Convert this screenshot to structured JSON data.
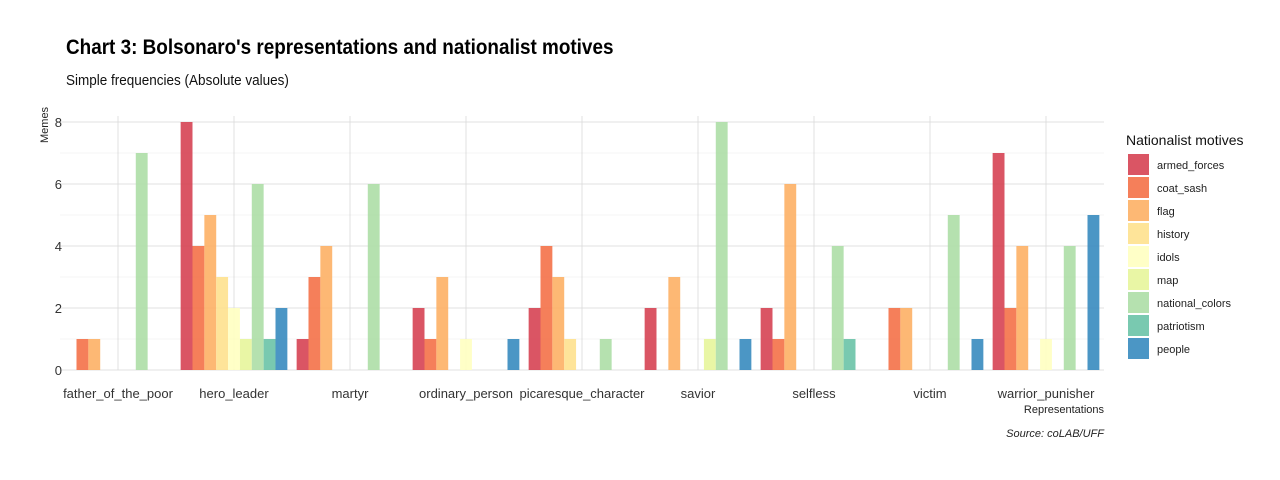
{
  "title": "Chart 3: Bolsonaro's representations and nationalist motives",
  "subtitle": "Simple frequencies (Absolute values)",
  "caption": "Source: coLAB/UFF",
  "legend_title": "Nationalist motives",
  "colors": [
    "#d53e4f",
    "#f46d43",
    "#fdae61",
    "#fee08b",
    "#ffffbf",
    "#e6f598",
    "#abdda4",
    "#66c2a5",
    "#3288bd"
  ],
  "chart_data": {
    "type": "bar",
    "title": "Chart 3: Bolsonaro's representations and nationalist motives",
    "subtitle": "Simple frequencies (Absolute values)",
    "xlabel": "Representations",
    "ylabel": "Memes",
    "ylim": [
      0,
      8
    ],
    "yticks": [
      0,
      2,
      4,
      6,
      8
    ],
    "grid": true,
    "legend_position": "right",
    "categories": [
      "father_of_the_poor",
      "hero_leader",
      "martyr",
      "ordinary_person",
      "picaresque_character",
      "savior",
      "selfless",
      "victim",
      "warrior_punisher"
    ],
    "series": [
      {
        "name": "armed_forces",
        "values": [
          0,
          8,
          1,
          2,
          2,
          2,
          2,
          0,
          7
        ]
      },
      {
        "name": "coat_sash",
        "values": [
          1,
          4,
          3,
          1,
          4,
          0,
          1,
          2,
          2
        ]
      },
      {
        "name": "flag",
        "values": [
          1,
          5,
          4,
          3,
          3,
          3,
          6,
          2,
          4
        ]
      },
      {
        "name": "history",
        "values": [
          0,
          3,
          0,
          0,
          1,
          0,
          0,
          0,
          0
        ]
      },
      {
        "name": "idols",
        "values": [
          0,
          2,
          0,
          1,
          0,
          0,
          0,
          0,
          1
        ]
      },
      {
        "name": "map",
        "values": [
          0,
          1,
          0,
          0,
          0,
          1,
          0,
          0,
          0
        ]
      },
      {
        "name": "national_colors",
        "values": [
          7,
          6,
          6,
          0,
          1,
          8,
          4,
          5,
          4
        ]
      },
      {
        "name": "patriotism",
        "values": [
          0,
          1,
          0,
          0,
          0,
          0,
          1,
          0,
          0
        ]
      },
      {
        "name": "people",
        "values": [
          0,
          2,
          0,
          1,
          0,
          1,
          0,
          1,
          5
        ]
      }
    ]
  }
}
